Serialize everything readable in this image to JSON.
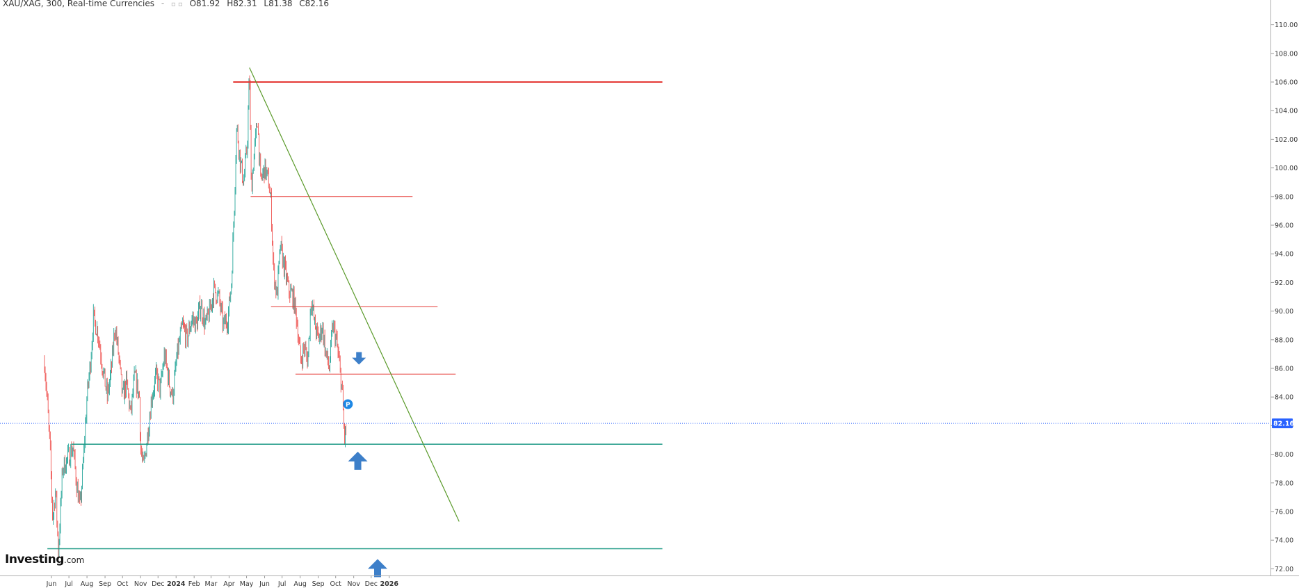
{
  "header": {
    "symbol": "XAU/XAG, 300, Real-time Currencies",
    "dash": "-",
    "open": "O81.92",
    "high": "H82.31",
    "low": "L81.38",
    "close": "C82.16"
  },
  "branding": {
    "name": "Investing",
    "suffix": ".com"
  },
  "colors": {
    "up": "#26a69a",
    "down": "#ef5350",
    "resistance": "#e53935",
    "support": "#1e9a86",
    "trendline": "#5a9a2a",
    "price_marker": "#2962ff",
    "arrows": "#3d7fc9"
  },
  "chart_data": {
    "type": "candlestick",
    "title": "XAU/XAG, 300, Real-time Currencies",
    "last_price": 82.16,
    "ohlc_last": {
      "open": 81.92,
      "high": 82.31,
      "low": 81.38,
      "close": 82.16
    },
    "ylim": [
      71,
      110
    ],
    "y_ticks": [
      "72.00",
      "74.00",
      "76.00",
      "78.00",
      "80.00",
      "82.00",
      "84.00",
      "86.00",
      "88.00",
      "90.00",
      "92.00",
      "94.00",
      "96.00",
      "98.00",
      "100.00",
      "102.00",
      "104.00",
      "106.00",
      "108.00",
      "110.00"
    ],
    "x_ticks": [
      "Jun",
      "Jul",
      "Aug",
      "Sep",
      "Oct",
      "Nov",
      "Dec",
      "2024",
      "Feb",
      "Mar",
      "Apr",
      "May",
      "Jun",
      "Jul",
      "Aug",
      "Sep",
      "Oct",
      "Nov",
      "Dec",
      "2026"
    ],
    "price_path": [
      [
        "2023-05-20",
        86.5
      ],
      [
        "2023-05-25",
        83.5
      ],
      [
        "2023-05-30",
        80.0
      ],
      [
        "2023-06-03",
        75.5
      ],
      [
        "2023-06-08",
        77.5
      ],
      [
        "2023-06-13",
        73.2
      ],
      [
        "2023-06-20",
        79.0
      ],
      [
        "2023-06-30",
        79.8
      ],
      [
        "2023-07-08",
        80.5
      ],
      [
        "2023-07-14",
        78.0
      ],
      [
        "2023-07-20",
        76.2
      ],
      [
        "2023-07-25",
        79.0
      ],
      [
        "2023-08-01",
        84.0
      ],
      [
        "2023-08-07",
        86.5
      ],
      [
        "2023-08-12",
        89.5
      ],
      [
        "2023-08-20",
        88.5
      ],
      [
        "2023-08-28",
        86.0
      ],
      [
        "2023-09-05",
        84.0
      ],
      [
        "2023-09-12",
        86.0
      ],
      [
        "2023-09-18",
        89.0
      ],
      [
        "2023-09-24",
        87.0
      ],
      [
        "2023-10-01",
        84.0
      ],
      [
        "2023-10-08",
        85.0
      ],
      [
        "2023-10-15",
        82.8
      ],
      [
        "2023-10-22",
        85.5
      ],
      [
        "2023-10-30",
        84.0
      ],
      [
        "2023-11-01",
        80.5
      ],
      [
        "2023-11-06",
        79.0
      ],
      [
        "2023-11-12",
        81.0
      ],
      [
        "2023-11-20",
        84.0
      ],
      [
        "2023-11-28",
        85.5
      ],
      [
        "2023-12-05",
        84.5
      ],
      [
        "2023-12-12",
        87.0
      ],
      [
        "2023-12-20",
        85.0
      ],
      [
        "2023-12-26",
        84.0
      ],
      [
        "2024-01-03",
        87.0
      ],
      [
        "2024-01-12",
        89.0
      ],
      [
        "2024-01-20",
        88.0
      ],
      [
        "2024-01-28",
        89.5
      ],
      [
        "2024-02-05",
        89.0
      ],
      [
        "2024-02-12",
        90.5
      ],
      [
        "2024-02-20",
        89.0
      ],
      [
        "2024-02-28",
        90.0
      ],
      [
        "2024-03-06",
        91.5
      ],
      [
        "2024-03-14",
        91.0
      ],
      [
        "2024-03-22",
        89.0
      ],
      [
        "2024-03-30",
        89.5
      ],
      [
        "2024-04-05",
        92.0
      ],
      [
        "2024-04-10",
        97.5
      ],
      [
        "2024-04-14",
        103.0
      ],
      [
        "2024-04-20",
        100.5
      ],
      [
        "2024-04-26",
        99.0
      ],
      [
        "2024-05-02",
        101.5
      ],
      [
        "2024-05-06",
        106.8
      ],
      [
        "2024-05-09",
        98.5
      ],
      [
        "2024-05-14",
        101.0
      ],
      [
        "2024-05-20",
        103.5
      ],
      [
        "2024-05-25",
        99.0
      ],
      [
        "2024-06-01",
        100.0
      ],
      [
        "2024-06-08",
        99.0
      ],
      [
        "2024-06-12",
        97.5
      ],
      [
        "2024-06-16",
        93.0
      ],
      [
        "2024-06-22",
        91.0
      ],
      [
        "2024-06-28",
        94.5
      ],
      [
        "2024-07-05",
        93.0
      ],
      [
        "2024-07-12",
        91.5
      ],
      [
        "2024-07-20",
        91.0
      ],
      [
        "2024-07-26",
        89.5
      ],
      [
        "2024-08-02",
        86.5
      ],
      [
        "2024-08-08",
        87.5
      ],
      [
        "2024-08-14",
        86.5
      ],
      [
        "2024-08-20",
        91.0
      ],
      [
        "2024-08-26",
        89.0
      ],
      [
        "2024-09-02",
        88.0
      ],
      [
        "2024-09-08",
        89.0
      ],
      [
        "2024-09-14",
        87.0
      ],
      [
        "2024-09-20",
        86.0
      ],
      [
        "2024-09-26",
        89.0
      ],
      [
        "2024-10-02",
        88.0
      ],
      [
        "2024-10-08",
        86.0
      ],
      [
        "2024-10-12",
        84.5
      ],
      [
        "2024-10-16",
        81.0
      ],
      [
        "2024-10-20",
        82.16
      ]
    ],
    "horizontal_levels": [
      {
        "price": 106.0,
        "from": "2024-04-08",
        "to": "2026-04-15",
        "color": "resistance",
        "width": 2
      },
      {
        "price": 98.0,
        "from": "2024-05-08",
        "to": "2025-02-10",
        "color": "resistance",
        "width": 1
      },
      {
        "price": 90.3,
        "from": "2024-06-12",
        "to": "2025-03-25",
        "color": "resistance",
        "width": 1
      },
      {
        "price": 85.6,
        "from": "2024-07-24",
        "to": "2025-04-25",
        "color": "resistance",
        "width": 1
      },
      {
        "price": 80.7,
        "from": "2023-07-05",
        "to": "2026-04-15",
        "color": "support",
        "width": 1.5
      },
      {
        "price": 73.4,
        "from": "2023-05-25",
        "to": "2026-04-15",
        "color": "support",
        "width": 1.5
      }
    ],
    "trendline": {
      "from": [
        "2024-05-06",
        107.0
      ],
      "to": [
        "2025-05-01",
        75.3
      ]
    },
    "annotations": [
      {
        "type": "arrow-down",
        "at": [
          "2024-11-10",
          86.7
        ]
      },
      {
        "type": "arrow-up",
        "at": [
          "2024-11-08",
          79.5
        ]
      },
      {
        "type": "arrow-up",
        "at": [
          "2024-12-12",
          72.0
        ]
      },
      {
        "type": "pivot-badge",
        "label": "P",
        "at": [
          "2024-10-22",
          83.5
        ]
      }
    ]
  }
}
